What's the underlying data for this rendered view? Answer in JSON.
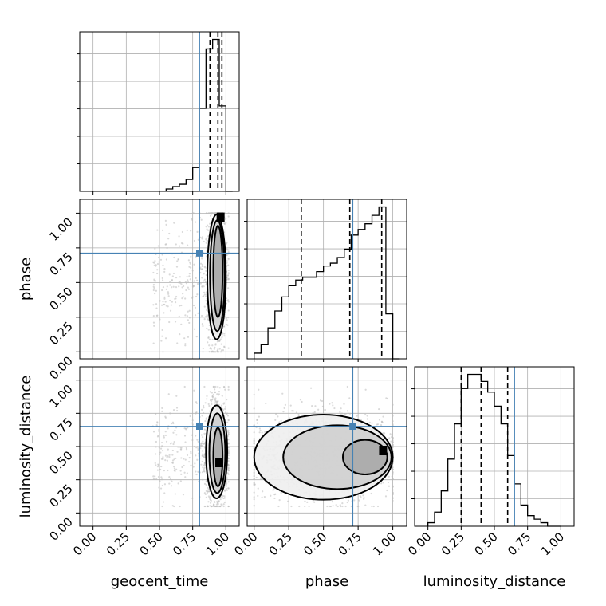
{
  "chart_data": {
    "type": "corner",
    "parameters": [
      "geocent_time",
      "phase",
      "luminosity_distance"
    ],
    "axis_labels": {
      "x": [
        "geocent_time",
        "phase",
        "luminosity_distance"
      ],
      "y": [
        "phase",
        "luminosity_distance"
      ]
    },
    "tick_values": [
      0.0,
      0.25,
      0.5,
      0.75,
      1.0
    ],
    "tick_labels": [
      "0.00",
      "0.25",
      "0.50",
      "0.75",
      "1.00"
    ],
    "axis_ranges": {
      "geocent_time": [
        -0.1,
        1.1
      ],
      "phase": [
        -0.05,
        1.1
      ],
      "luminosity_distance": [
        -0.1,
        1.1
      ]
    },
    "grid": true,
    "colors": {
      "truth": "#4682b4",
      "hist": "#000000",
      "contour": "#000000",
      "samples": "#bbbbbb"
    },
    "truths": {
      "geocent_time": 0.8,
      "phase": 0.71,
      "luminosity_distance": 0.65
    },
    "histograms": {
      "geocent_time": {
        "bin_edges": [
          0.55,
          0.6,
          0.65,
          0.7,
          0.75,
          0.8,
          0.85,
          0.9,
          0.95,
          1.0,
          1.05
        ],
        "counts": [
          1,
          2,
          3,
          5,
          10,
          35,
          60,
          64,
          36,
          0
        ],
        "quantiles": [
          0.88,
          0.94,
          0.97
        ]
      },
      "phase": {
        "bin_edges": [
          0.0,
          0.05,
          0.1,
          0.15,
          0.2,
          0.25,
          0.3,
          0.35,
          0.4,
          0.45,
          0.5,
          0.55,
          0.6,
          0.65,
          0.7,
          0.75,
          0.8,
          0.85,
          0.9,
          0.95,
          1.0,
          1.05
        ],
        "counts": [
          2,
          5,
          11,
          17,
          22,
          26,
          28,
          29,
          29,
          31,
          33,
          34,
          36,
          39,
          44,
          46,
          48,
          51,
          54,
          16,
          0
        ],
        "quantiles": [
          0.34,
          0.69,
          0.92
        ]
      },
      "luminosity_distance": {
        "bin_edges": [
          0.0,
          0.05,
          0.1,
          0.15,
          0.2,
          0.25,
          0.3,
          0.35,
          0.4,
          0.45,
          0.5,
          0.55,
          0.6,
          0.65,
          0.7,
          0.75,
          0.8,
          0.85,
          0.9,
          0.95,
          1.0
        ],
        "counts": [
          1,
          4,
          10,
          19,
          29,
          39,
          43,
          43,
          41,
          38,
          34,
          29,
          20,
          12,
          6,
          3,
          2,
          1,
          0,
          0
        ],
        "quantiles": [
          0.25,
          0.4,
          0.6
        ]
      }
    },
    "joint": [
      {
        "x": "geocent_time",
        "y": "phase",
        "contours": [
          {
            "cx": 0.93,
            "cy": 0.54,
            "rx": 0.07,
            "ry": 0.45
          },
          {
            "cx": 0.935,
            "cy": 0.55,
            "rx": 0.055,
            "ry": 0.4
          },
          {
            "cx": 0.94,
            "cy": 0.58,
            "rx": 0.035,
            "ry": 0.33
          }
        ],
        "scatter_range": {
          "x": [
            0.45,
            1.02
          ],
          "y": [
            0.0,
            1.0
          ]
        },
        "peak": [
          0.96,
          0.97
        ]
      },
      {
        "x": "geocent_time",
        "y": "luminosity_distance",
        "contours": [
          {
            "cx": 0.93,
            "cy": 0.46,
            "rx": 0.08,
            "ry": 0.35
          },
          {
            "cx": 0.935,
            "cy": 0.45,
            "rx": 0.06,
            "ry": 0.3
          },
          {
            "cx": 0.94,
            "cy": 0.42,
            "rx": 0.035,
            "ry": 0.22
          }
        ],
        "scatter_range": {
          "x": [
            0.45,
            1.02
          ],
          "y": [
            0.05,
            0.95
          ]
        },
        "peak": [
          0.95,
          0.38
        ]
      },
      {
        "x": "phase",
        "y": "luminosity_distance",
        "contours": [
          {
            "cx": 0.5,
            "cy": 0.42,
            "rx": 0.5,
            "ry": 0.32
          },
          {
            "cx": 0.6,
            "cy": 0.42,
            "rx": 0.39,
            "ry": 0.24
          },
          {
            "cx": 0.8,
            "cy": 0.42,
            "rx": 0.16,
            "ry": 0.13
          }
        ],
        "scatter_range": {
          "x": [
            0.0,
            1.0
          ],
          "y": [
            0.05,
            0.95
          ]
        },
        "peak": [
          0.93,
          0.47
        ]
      }
    ]
  }
}
